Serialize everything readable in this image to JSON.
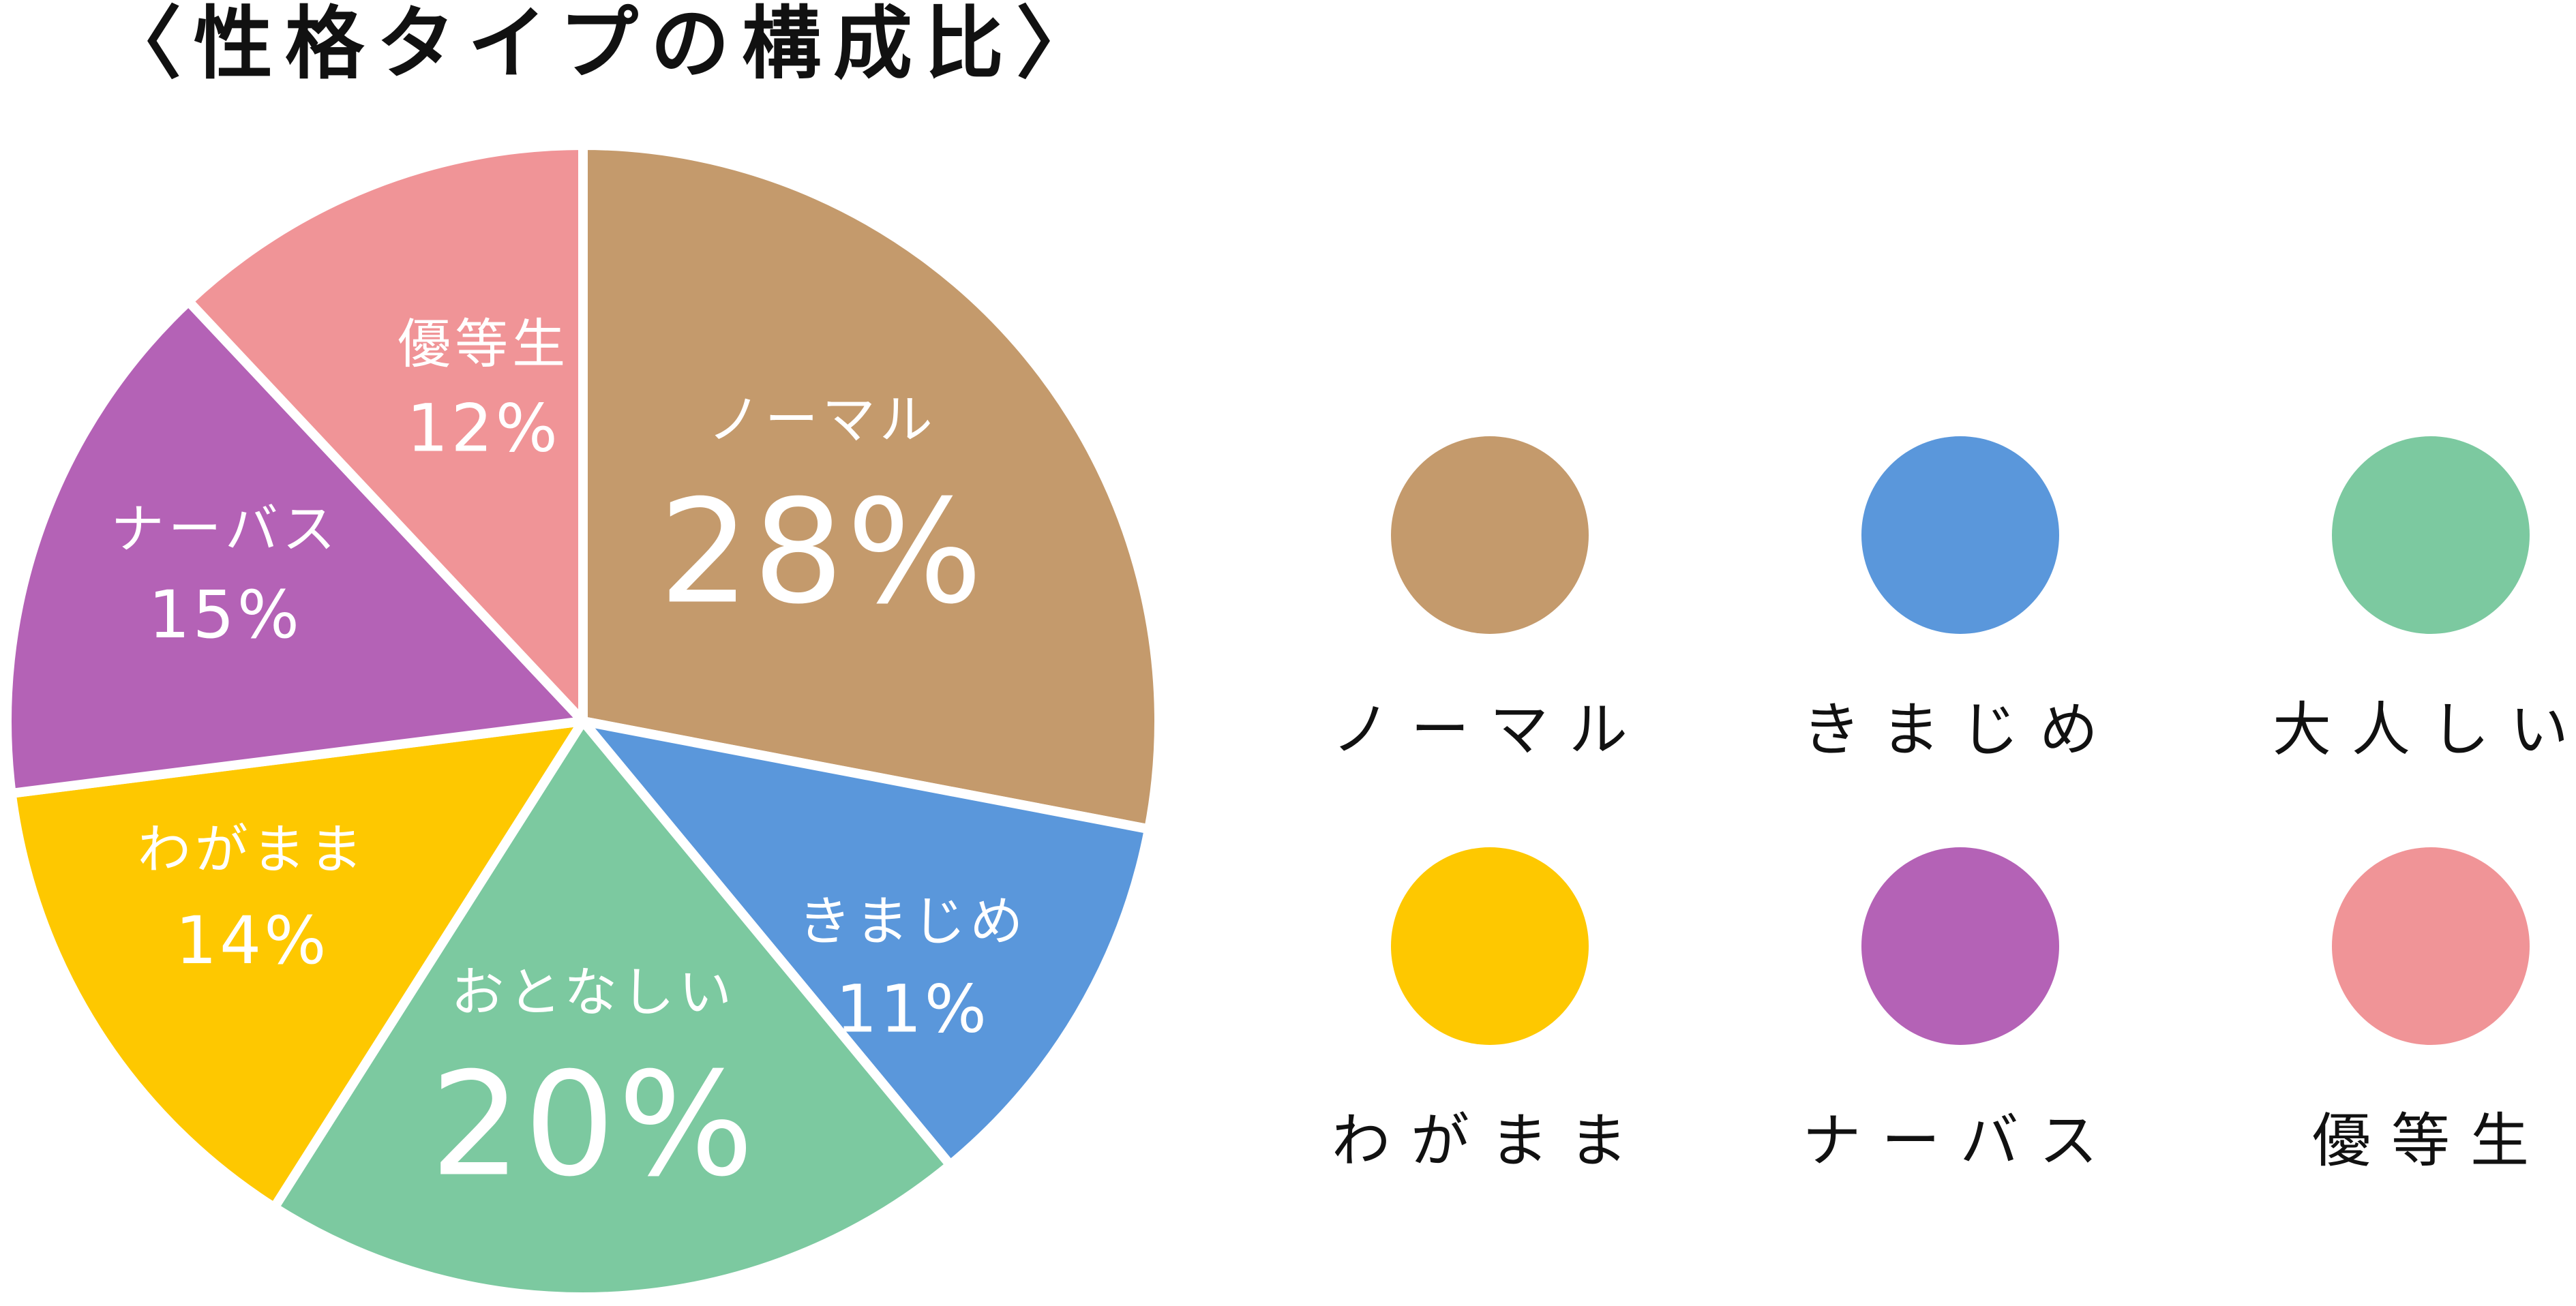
{
  "chart_data": {
    "type": "pie",
    "title": "〈性格タイプの構成比〉",
    "slices": [
      {
        "label": "ノーマル",
        "value": 28,
        "value_label": "28%",
        "color": "#C49A6C"
      },
      {
        "label": "きまじめ",
        "value": 11,
        "value_label": "11%",
        "color": "#5A97DB"
      },
      {
        "label": "おとなしい",
        "value": 20,
        "value_label": "20%",
        "color": "#7CC9A0"
      },
      {
        "label": "わがまま",
        "value": 14,
        "value_label": "14%",
        "color": "#FEC800"
      },
      {
        "label": "ナーバス",
        "value": 15,
        "value_label": "15%",
        "color": "#B462B6"
      },
      {
        "label": "優等生",
        "value": 12,
        "value_label": "12%",
        "color": "#F09497"
      }
    ],
    "legend": [
      {
        "label": "ノーマル",
        "color": "#C49A6C"
      },
      {
        "label": "きまじめ",
        "color": "#5A97DB"
      },
      {
        "label": "大人しい",
        "color": "#7CC9A0"
      },
      {
        "label": "わがまま",
        "color": "#FEC800"
      },
      {
        "label": "ナーバス",
        "color": "#B462B6"
      },
      {
        "label": "優等生",
        "color": "#F09497"
      }
    ],
    "legend_placement": "right"
  }
}
